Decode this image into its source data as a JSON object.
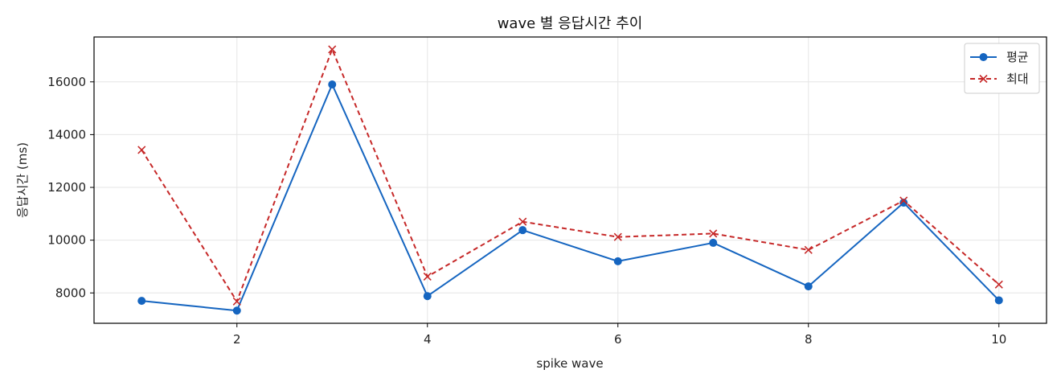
{
  "chart_data": {
    "type": "line",
    "title": "wave 별 응답시간 추이",
    "xlabel": "spike wave",
    "ylabel": "응답시간 (ms)",
    "x": [
      1,
      2,
      3,
      4,
      5,
      6,
      7,
      8,
      9,
      10
    ],
    "xlim": [
      0.5,
      10.5
    ],
    "ylim": [
      6850,
      17700
    ],
    "xticks": [
      2,
      4,
      6,
      8,
      10
    ],
    "yticks": [
      8000,
      10000,
      12000,
      14000,
      16000
    ],
    "grid": true,
    "legend_position": "top-right",
    "series": [
      {
        "name": "평균",
        "values": [
          7700,
          7330,
          15900,
          7880,
          10380,
          9200,
          9900,
          8250,
          11420,
          7720
        ],
        "color": "#1565c0",
        "line_style": "solid",
        "marker": "circle"
      },
      {
        "name": "최대",
        "values": [
          13420,
          7680,
          17230,
          8620,
          10700,
          10120,
          10250,
          9630,
          11500,
          8320
        ],
        "color": "#c62828",
        "line_style": "dashed",
        "marker": "x"
      }
    ]
  }
}
